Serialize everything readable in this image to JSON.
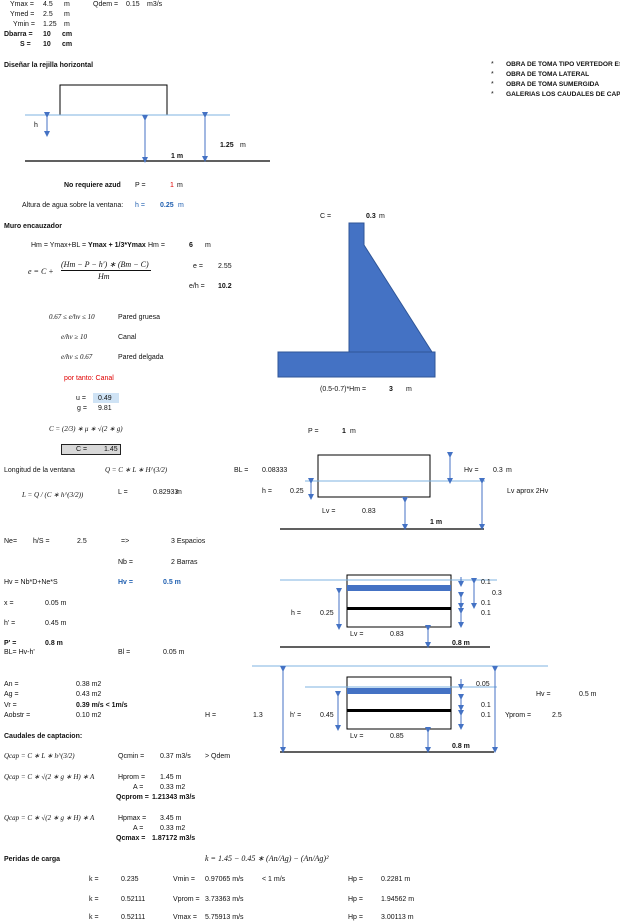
{
  "top": {
    "ymax_l": "Ymax =",
    "ymax_v": "4.5",
    "ymax_u": "m",
    "qdem_l": "Qdem =",
    "qdem_v": "0.15",
    "qdem_u": "m3/s",
    "ymed_l": "Ymed =",
    "ymed_v": "2.5",
    "ymed_u": "m",
    "ymin_l": "Ymin =",
    "ymin_v": "1.25",
    "ymin_u": "m",
    "dbarra_l": "Dbarra =",
    "dbarra_v": "10",
    "dbarra_u": "cm",
    "s_l": "S =",
    "s_v": "10",
    "s_u": "cm"
  },
  "section1": {
    "title": "Diseñar la rejilla horizontal",
    "h_lbl": "h",
    "onem": "1 m",
    "dim_v": "1.25",
    "dim_u": "m",
    "no_azud": "No requiere azud",
    "p_l": "P =",
    "p_v": "1",
    "p_u": "m",
    "altura_l": "Altura de agua sobre la ventana:",
    "altura_h": "h =",
    "altura_v": "0.25",
    "altura_u": "m"
  },
  "bullets": [
    {
      "mark": "*",
      "text": "OBRA DE TOMA TIPO VERTEDOR ES"
    },
    {
      "mark": "*",
      "text": "OBRA DE TOMA LATERAL"
    },
    {
      "mark": "*",
      "text": "OBRA DE TOMA SUMERGIDA"
    },
    {
      "mark": "*",
      "text": "GALERIAS LOS CAUDALES DE CAPT"
    }
  ],
  "muro": {
    "title": "Muro encauzador",
    "hm_formula": "Hm = Ymax+BL = ",
    "hm_formula_b": "Ymax + 1/3*Ymax",
    "hm_l": "Hm =",
    "hm_v": "6",
    "hm_u": "m",
    "e_formula_lhs": "e = C +",
    "e_formula_num": "(Hm − P − h′) ∗ (Bm − C)",
    "e_formula_den": "Hm",
    "e_l": "e =",
    "e_v": "2.55",
    "eh_l": "e/h =",
    "eh_v": "10.2",
    "c_top_l": "C =",
    "c_top_v": "0.3",
    "c_top_u": "m",
    "base_l": "(0.5-0.7)*Hm =",
    "base_v": "3",
    "base_u": "m",
    "cond1": "0.67 ≤ e/hv ≤ 10",
    "cond1_lbl": "Pared gruesa",
    "cond2": "e/hv ≥ 10",
    "cond2_lbl": "Canal",
    "cond3": "e/hv ≤ 0.67",
    "cond3_lbl": "Pared delgada",
    "portanto": "por tanto:  Canal",
    "u_l": "u =",
    "u_v": "0.49",
    "g_l": "g =",
    "g_v": "9.81",
    "c_formula": "C = (2/3) ∗ μ ∗ √(2 ∗ g)",
    "c_l": "C =",
    "c_v": "1.45",
    "p2_l": "P =",
    "p2_v": "1",
    "p2_u": "m"
  },
  "ventana": {
    "long_l": "Longitud de la ventana",
    "q_formula": "Q = C ∗ L ∗ H^(3/2)",
    "l_formula": "L = Q / (C ∗ h^(3/2))",
    "l_l": "L =",
    "l_v": "0.82933",
    "l_u": "m",
    "bl_l": "BL =",
    "bl_v": "0.08333",
    "hv_l": "Hv =",
    "hv_v": "0.3",
    "hv_u": "m",
    "h_l": "h =",
    "h_v": "0.25",
    "lvaprox": "Lv aprox  2Hv",
    "lv_l": "Lv =",
    "lv_v": "0.83",
    "onem": "1 m"
  },
  "barras": {
    "ne_l": "Ne=",
    "hs_l": "h/S =",
    "hs_v": "2.5",
    "arrow": "=>",
    "esp": "3 Espacios",
    "nb_l": "Nb =",
    "nb_v": "2 Barras",
    "hv_formula": "Hv = Nb*D+Ne*S",
    "hv_l": "Hv =",
    "hv_v": "0.5 m",
    "x_l": "x =",
    "x_v": "0.05 m",
    "hp_l": "h' =",
    "hp_v": "0.45 m",
    "pp_l": "P' =",
    "pp_v": "0.8  m",
    "blf": "BL= Hv-h'",
    "bl_l": "Bl =",
    "bl_v": "0.05 m",
    "d_01a": "0.1",
    "d_03": "0.3",
    "d_01b": "0.1",
    "d_01c": "0.1",
    "d_h_l": "h =",
    "d_h_v": "0.25",
    "d_lv_l": "Lv =",
    "d_lv_v": "0.83",
    "d_08": "0.8  m"
  },
  "areas": {
    "an_l": "An =",
    "an_v": "0.38  m2",
    "ag_l": "Ag =",
    "ag_v": "0.43  m2",
    "vr_l": "Vr =",
    "vr_v": "0.39  m/s  < 1m/s",
    "aob_l": "Aobstr =",
    "aob_v": "0.10  m2",
    "H_l": "H =",
    "H_v": "1.3",
    "hp_l": "h' =",
    "hp_v": "0.45",
    "d_005": "0.05",
    "d_01a": "0.1",
    "d_01b": "0.1",
    "hv_l": "Hv =",
    "hv_v": "0.5 m",
    "yprom_l": "Yprom =",
    "yprom_v": "2.5",
    "lv_l": "Lv =",
    "lv_v": "0.85",
    "d_08": "0.8  m"
  },
  "caudales": {
    "title": "Caudales de captacion:",
    "f1": "Qcap = C ∗ L ∗ h^(3/2)",
    "qcmin_l": "Qcmin =",
    "qcmin_v": "0.37  m3/s",
    "qcmin_c": ">  Qdem",
    "f2": "Qcap = C ∗ √(2 ∗ g ∗ H) ∗ A",
    "hprom_l": "Hprom =",
    "hprom_v": "1.45  m",
    "a1_l": "A =",
    "a1_v": "0.33  m2",
    "qcprom_l": "Qcprom =",
    "qcprom_v": "1.21343  m3/s",
    "f3": "Qcap = C ∗ √(2 ∗ g ∗ H) ∗ A",
    "hpmax_l": "Hpmax =",
    "hpmax_v": "3.45  m",
    "a2_l": "A =",
    "a2_v": "0.33  m2",
    "qcmax_l": "Qcmax =",
    "qcmax_v": "1.87172  m3/s"
  },
  "perdidas": {
    "title": "Peridas de carga",
    "formula": "k = 1.45 − 0.45 ∗ (An/Ag) − (An/Ag)²",
    "rows": [
      {
        "k_l": "k =",
        "k_v": "0.235",
        "v_l": "Vmin =",
        "v_v": "0.97065  m/s",
        "c": "< 1 m/s",
        "hp_l": "Hp =",
        "hp_v": "0.2281  m"
      },
      {
        "k_l": "k =",
        "k_v": "0.52111",
        "v_l": "Vprom =",
        "v_v": "3.73363  m/s",
        "c": "",
        "hp_l": "Hp =",
        "hp_v": "1.94562  m"
      },
      {
        "k_l": "k =",
        "k_v": "0.52111",
        "v_l": "Vmax =",
        "v_v": "5.75913  m/s",
        "c": "",
        "hp_l": "Hp =",
        "hp_v": "3.00113  m"
      }
    ]
  },
  "colors": {
    "blue": "#4472c4",
    "accent_red": "#e00000",
    "highlight": "#cfe3f5"
  }
}
